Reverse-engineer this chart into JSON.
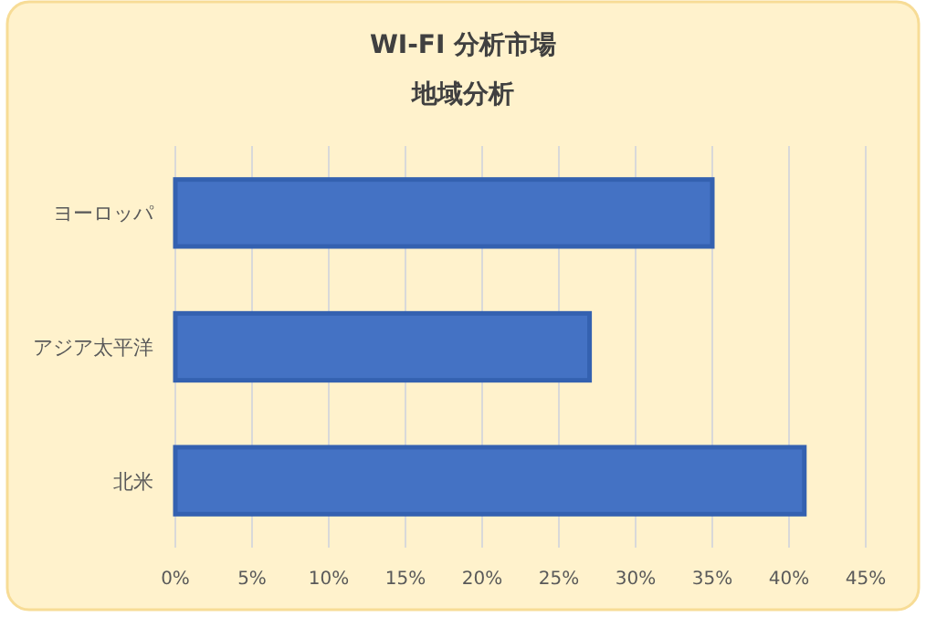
{
  "chart_data": {
    "type": "bar",
    "orientation": "horizontal",
    "title": "WI-FI 分析市場",
    "subtitle": "地域分析",
    "categories": [
      "ヨーロッパ",
      "アジア太平洋",
      "北米"
    ],
    "values": [
      35,
      27,
      41
    ],
    "color": "#4472c4",
    "xlim": [
      0,
      45
    ],
    "xticks": [
      {
        "value": 0,
        "label": "0%"
      },
      {
        "value": 5,
        "label": "5%"
      },
      {
        "value": 10,
        "label": "10%"
      },
      {
        "value": 15,
        "label": "15%"
      },
      {
        "value": 20,
        "label": "20%"
      },
      {
        "value": 25,
        "label": "25%"
      },
      {
        "value": 30,
        "label": "30%"
      },
      {
        "value": 35,
        "label": "35%"
      },
      {
        "value": 40,
        "label": "40%"
      },
      {
        "value": 45,
        "label": "45%"
      }
    ],
    "grid": "x"
  }
}
